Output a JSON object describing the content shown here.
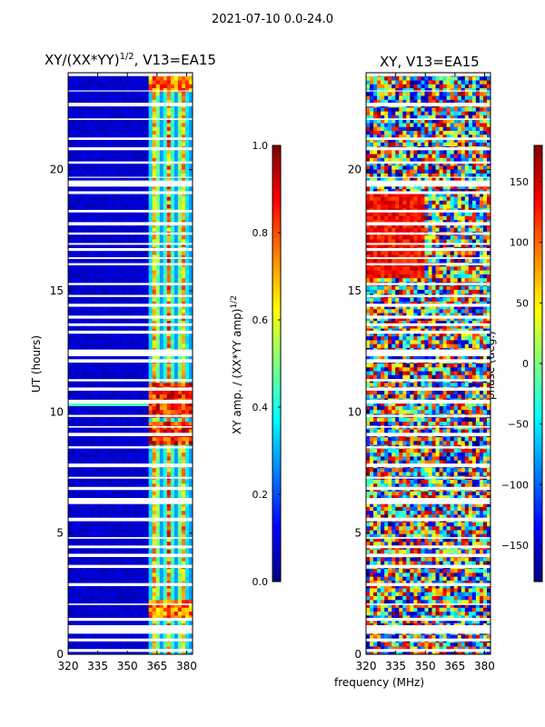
{
  "figure_title": "2021-07-10 0.0-24.0",
  "common_xlabel": "frequency (MHz)",
  "colors": {
    "jet": [
      "#000080",
      "#0000ff",
      "#0080ff",
      "#00ffff",
      "#80ff80",
      "#ffff00",
      "#ff8000",
      "#ff0000",
      "#800000"
    ],
    "flag": "#ffffff"
  },
  "chart_data": [
    {
      "type": "heatmap",
      "title": "XY/(XX*YY)",
      "title_sup": "1/2",
      "title_suffix": ", V13=EA15",
      "xlabel": "",
      "ylabel": "UT (hours)",
      "xlim": [
        320,
        383
      ],
      "ylim": [
        0,
        24
      ],
      "xticks": [
        320,
        335,
        350,
        365,
        380
      ],
      "yticks": [
        0,
        5,
        10,
        15,
        20
      ],
      "colorbar": {
        "label": "XY amp. / (XX*YY amp)",
        "label_sup": "1/2",
        "range": [
          0.0,
          1.0
        ],
        "ticks": [
          "0.0",
          "0.2",
          "0.4",
          "0.6",
          "0.8",
          "1.0"
        ],
        "tick_values": [
          0.0,
          0.2,
          0.4,
          0.6,
          0.8,
          1.0
        ]
      },
      "description_values": {
        "bright_channels_MHz": [
          364,
          371,
          378
        ],
        "background_level": 0.05,
        "peak_level": 0.95
      }
    },
    {
      "type": "heatmap",
      "title": "XY, V13=EA15",
      "xlabel": "frequency (MHz)",
      "ylabel": "",
      "xlim": [
        320,
        383
      ],
      "ylim": [
        0,
        24
      ],
      "xticks": [
        320,
        335,
        350,
        365,
        380
      ],
      "yticks": [
        0,
        5,
        10,
        15,
        20
      ],
      "colorbar": {
        "label": "phase (deg.)",
        "range": [
          -180,
          180
        ],
        "ticks": [
          "−150",
          "−100",
          "−50",
          "0",
          "50",
          "100",
          "150"
        ],
        "tick_values": [
          -150,
          -100,
          -50,
          0,
          50,
          100,
          150
        ]
      }
    }
  ]
}
